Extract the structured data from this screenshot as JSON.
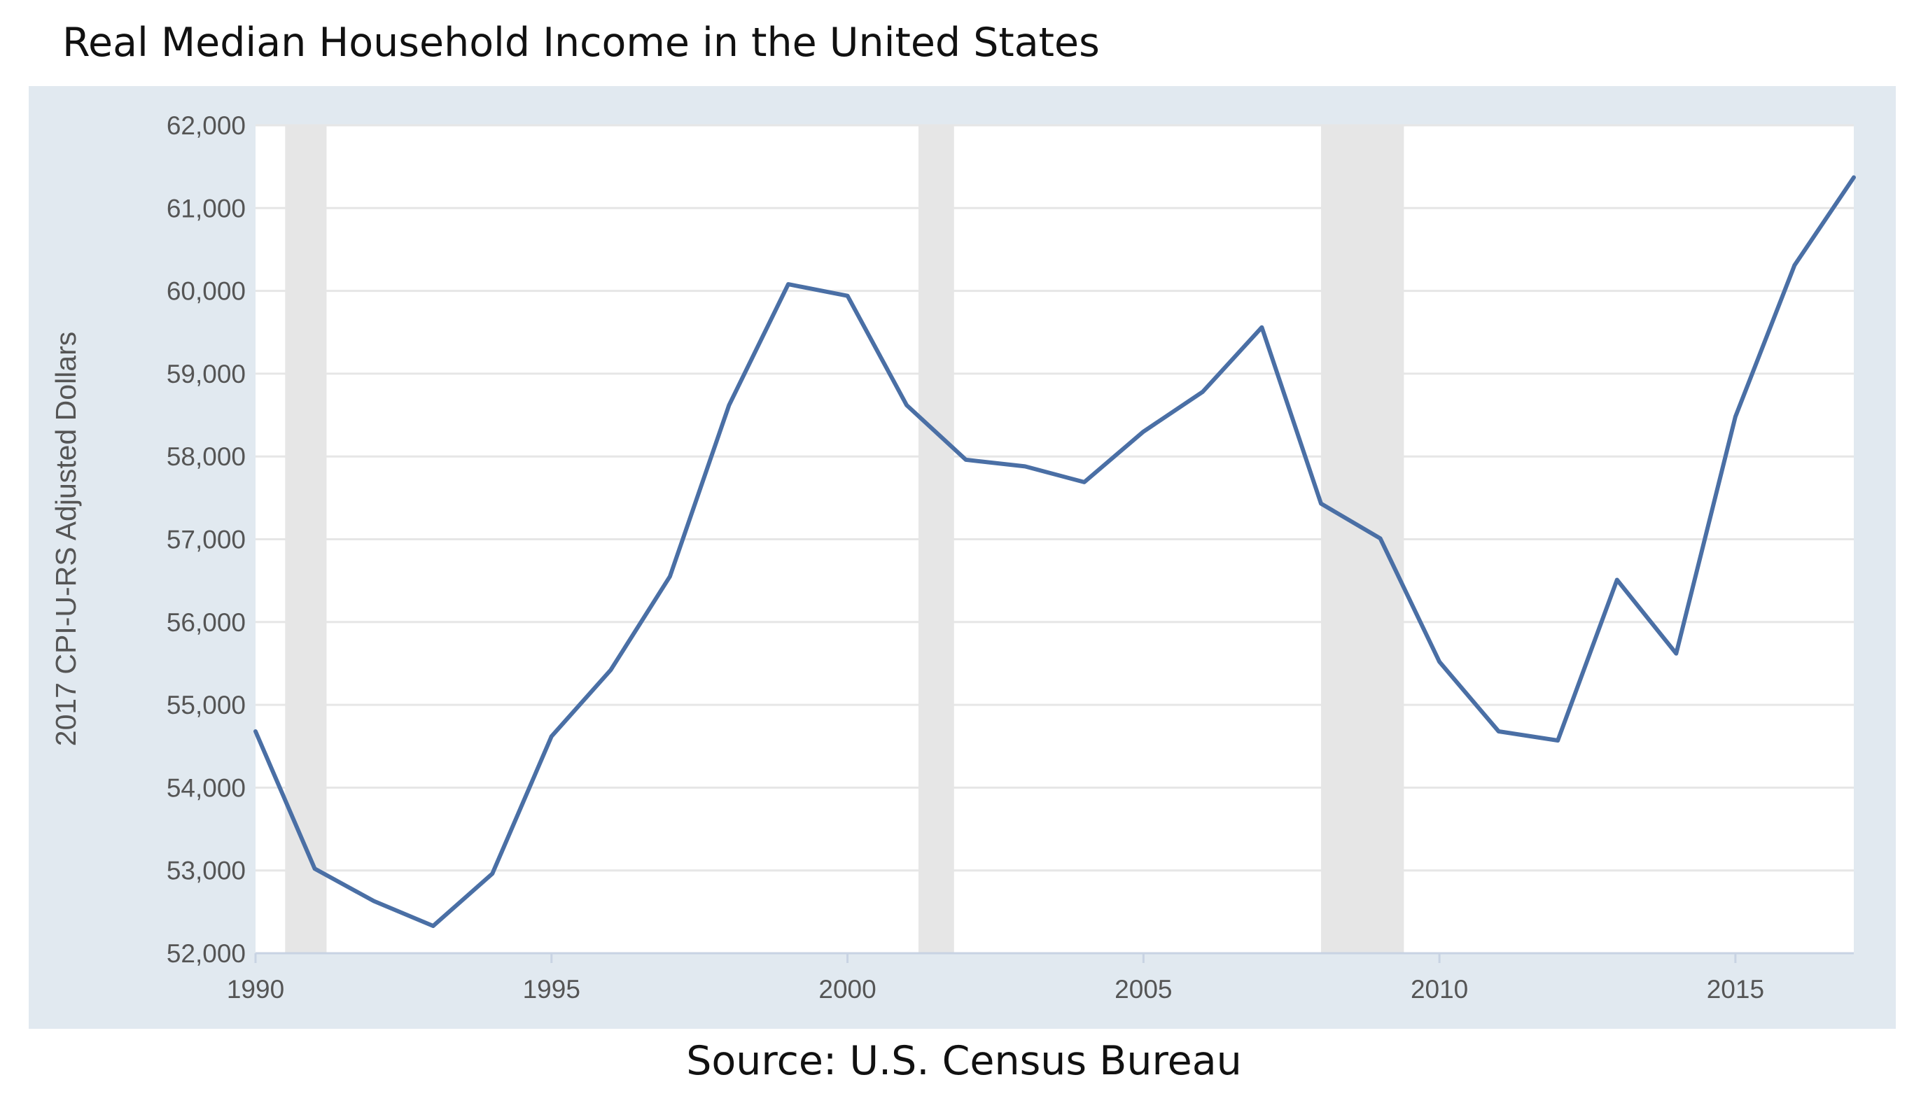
{
  "title": "Real Median Household Income in the United States",
  "source": "Source: U.S. Census Bureau",
  "chart_data": {
    "type": "line",
    "title": "Real Median Household Income in the United States",
    "xlabel": "",
    "ylabel": "2017 CPI-U-RS Adjusted Dollars",
    "xlim": [
      1990,
      2017
    ],
    "ylim": [
      52000,
      62000
    ],
    "x_ticks": [
      1990,
      1995,
      2000,
      2005,
      2010,
      2015
    ],
    "y_ticks": [
      52000,
      53000,
      54000,
      55000,
      56000,
      57000,
      58000,
      59000,
      60000,
      61000,
      62000
    ],
    "y_tick_labels": [
      "52,000",
      "53,000",
      "54,000",
      "55,000",
      "56,000",
      "57,000",
      "58,000",
      "59,000",
      "60,000",
      "61,000",
      "62,000"
    ],
    "grid": "horizontal",
    "recession_shading": [
      [
        1990.5,
        1991.2
      ],
      [
        2001.2,
        2001.8
      ],
      [
        2008.0,
        2009.4
      ]
    ],
    "series": [
      {
        "color": "#4a6fa5",
        "x": [
          1990,
          1991,
          1992,
          1993,
          1994,
          1995,
          1996,
          1997,
          1998,
          1999,
          2000,
          2001,
          2002,
          2003,
          2004,
          2005,
          2006,
          2007,
          2008,
          2009,
          2010,
          2011,
          2012,
          2013,
          2014,
          2015,
          2016,
          2017
        ],
        "values": [
          54680,
          53020,
          52630,
          52330,
          52960,
          54620,
          55420,
          56550,
          58620,
          60080,
          59940,
          58620,
          57960,
          57880,
          57690,
          58300,
          58780,
          59560,
          57430,
          57010,
          55520,
          54680,
          54570,
          56510,
          55620,
          58480,
          60310,
          61370
        ]
      }
    ],
    "colors": {
      "line": "#4a6fa5",
      "panel": "#e1e9f0",
      "plot": "#ffffff",
      "recession": "#e6e6e6",
      "grid": "#e6e6e6"
    }
  }
}
